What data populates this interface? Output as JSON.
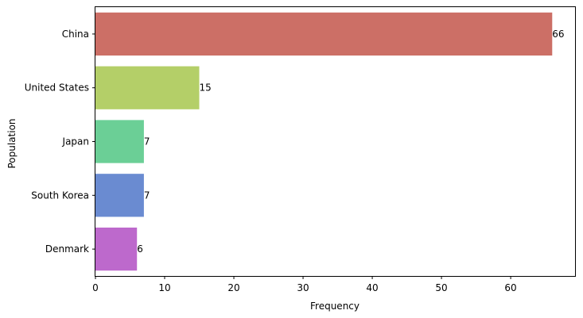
{
  "chart_data": {
    "type": "bar",
    "orientation": "horizontal",
    "categories": [
      "China",
      "United States",
      "Japan",
      "South Korea",
      "Denmark"
    ],
    "values": [
      66,
      15,
      7,
      7,
      6
    ],
    "colors": [
      "#cc6f66",
      "#b4cf68",
      "#6bcf96",
      "#6a8bd1",
      "#bd69cc"
    ],
    "title": "",
    "xlabel": "Frequency",
    "ylabel": "Population",
    "xlim": [
      0,
      69.3
    ],
    "xticks": [
      0,
      10,
      20,
      30,
      40,
      50,
      60
    ],
    "grid": false,
    "data_labels": [
      "66",
      "15",
      "7",
      "7",
      "6"
    ]
  }
}
